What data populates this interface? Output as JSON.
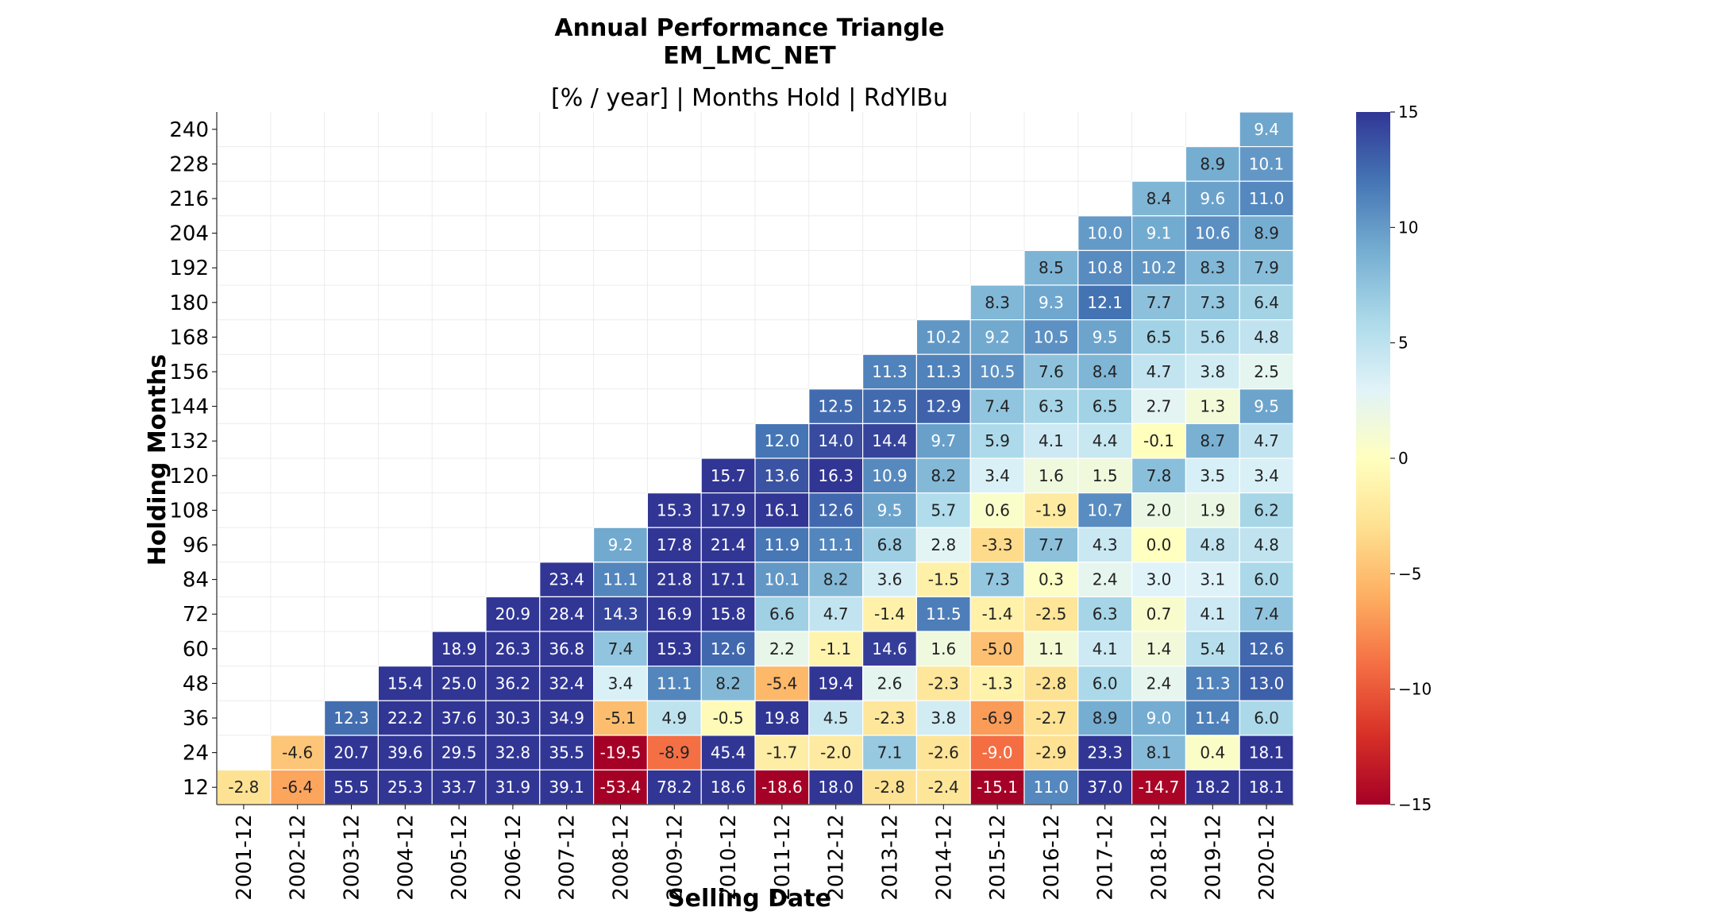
{
  "chart_data": {
    "type": "heatmap",
    "title": "Annual Performance Triangle",
    "subtitle_line": "EM_LMC_NET",
    "axes_title": "[% / year] | Months Hold | RdYlBu",
    "xlabel": "Selling Date",
    "ylabel": "Holding Months",
    "colormap": "RdYlBu",
    "vmin": -15,
    "vmax": 15,
    "colorbar_ticks": [
      15,
      10,
      5,
      0,
      -5,
      -10,
      -15
    ],
    "colorbar_tick_labels": [
      "15",
      "10",
      "5",
      "0",
      "−5",
      "−10",
      "−15"
    ],
    "x_categories": [
      "2001-12",
      "2002-12",
      "2003-12",
      "2004-12",
      "2005-12",
      "2006-12",
      "2007-12",
      "2008-12",
      "2009-12",
      "2010-12",
      "2011-12",
      "2012-12",
      "2013-12",
      "2014-12",
      "2015-12",
      "2016-12",
      "2017-12",
      "2018-12",
      "2019-12",
      "2020-12"
    ],
    "y_categories": [
      240,
      228,
      216,
      204,
      192,
      180,
      168,
      156,
      144,
      132,
      120,
      108,
      96,
      84,
      72,
      60,
      48,
      36,
      24,
      12
    ],
    "values": [
      [
        null,
        null,
        null,
        null,
        null,
        null,
        null,
        null,
        null,
        null,
        null,
        null,
        null,
        null,
        null,
        null,
        null,
        null,
        null,
        9.4
      ],
      [
        null,
        null,
        null,
        null,
        null,
        null,
        null,
        null,
        null,
        null,
        null,
        null,
        null,
        null,
        null,
        null,
        null,
        null,
        8.9,
        10.1
      ],
      [
        null,
        null,
        null,
        null,
        null,
        null,
        null,
        null,
        null,
        null,
        null,
        null,
        null,
        null,
        null,
        null,
        null,
        8.4,
        9.6,
        11.0
      ],
      [
        null,
        null,
        null,
        null,
        null,
        null,
        null,
        null,
        null,
        null,
        null,
        null,
        null,
        null,
        null,
        null,
        10.0,
        9.1,
        10.6,
        8.9
      ],
      [
        null,
        null,
        null,
        null,
        null,
        null,
        null,
        null,
        null,
        null,
        null,
        null,
        null,
        null,
        null,
        8.5,
        10.8,
        10.2,
        8.3,
        7.9
      ],
      [
        null,
        null,
        null,
        null,
        null,
        null,
        null,
        null,
        null,
        null,
        null,
        null,
        null,
        null,
        8.3,
        9.3,
        12.1,
        7.7,
        7.3,
        6.4
      ],
      [
        null,
        null,
        null,
        null,
        null,
        null,
        null,
        null,
        null,
        null,
        null,
        null,
        null,
        10.2,
        9.2,
        10.5,
        9.5,
        6.5,
        5.6,
        4.8
      ],
      [
        null,
        null,
        null,
        null,
        null,
        null,
        null,
        null,
        null,
        null,
        null,
        null,
        11.3,
        11.3,
        10.5,
        7.6,
        8.4,
        4.7,
        3.8,
        2.5
      ],
      [
        null,
        null,
        null,
        null,
        null,
        null,
        null,
        null,
        null,
        null,
        null,
        12.5,
        12.5,
        12.9,
        7.4,
        6.3,
        6.5,
        2.7,
        1.3,
        9.5
      ],
      [
        null,
        null,
        null,
        null,
        null,
        null,
        null,
        null,
        null,
        null,
        12.0,
        14.0,
        14.4,
        9.7,
        5.9,
        4.1,
        4.4,
        -0.1,
        8.7,
        4.7
      ],
      [
        null,
        null,
        null,
        null,
        null,
        null,
        null,
        null,
        null,
        15.7,
        13.6,
        16.3,
        10.9,
        8.2,
        3.4,
        1.6,
        1.5,
        7.8,
        3.5,
        3.4
      ],
      [
        null,
        null,
        null,
        null,
        null,
        null,
        null,
        null,
        15.3,
        17.9,
        16.1,
        12.6,
        9.5,
        5.7,
        0.6,
        -1.9,
        10.7,
        2.0,
        1.9,
        6.2
      ],
      [
        null,
        null,
        null,
        null,
        null,
        null,
        null,
        9.2,
        17.8,
        21.4,
        11.9,
        11.1,
        6.8,
        2.8,
        -3.3,
        7.7,
        4.3,
        0.0,
        4.8,
        4.8
      ],
      [
        null,
        null,
        null,
        null,
        null,
        null,
        23.4,
        11.1,
        21.8,
        17.1,
        10.1,
        8.2,
        3.6,
        -1.5,
        7.3,
        0.3,
        2.4,
        3.0,
        3.1,
        6.0
      ],
      [
        null,
        null,
        null,
        null,
        null,
        20.9,
        28.4,
        14.3,
        16.9,
        15.8,
        6.6,
        4.7,
        -1.4,
        11.5,
        -1.4,
        -2.5,
        6.3,
        0.7,
        4.1,
        7.4
      ],
      [
        null,
        null,
        null,
        null,
        18.9,
        26.3,
        36.8,
        7.4,
        15.3,
        12.6,
        2.2,
        -1.1,
        14.6,
        1.6,
        -5.0,
        1.1,
        4.1,
        1.4,
        5.4,
        12.6
      ],
      [
        null,
        null,
        null,
        15.4,
        25.0,
        36.2,
        32.4,
        3.4,
        11.1,
        8.2,
        -5.4,
        19.4,
        2.6,
        -2.3,
        -1.3,
        -2.8,
        6.0,
        2.4,
        11.3,
        13.0
      ],
      [
        null,
        null,
        12.3,
        22.2,
        37.6,
        30.3,
        34.9,
        -5.1,
        4.9,
        -0.5,
        19.8,
        4.5,
        -2.3,
        3.8,
        -6.9,
        -2.7,
        8.9,
        9.0,
        11.4,
        6.0
      ],
      [
        null,
        -4.6,
        20.7,
        39.6,
        29.5,
        32.8,
        35.5,
        -19.5,
        -8.9,
        45.4,
        -1.7,
        -2.0,
        7.1,
        -2.6,
        -9.0,
        -2.9,
        23.3,
        8.1,
        0.4,
        18.1
      ],
      [
        -2.8,
        -6.4,
        55.5,
        25.3,
        33.7,
        31.9,
        39.1,
        -53.4,
        78.2,
        18.6,
        -18.6,
        18.0,
        -2.8,
        -2.4,
        -15.1,
        11.0,
        37.0,
        -14.7,
        18.2,
        18.1
      ]
    ]
  }
}
